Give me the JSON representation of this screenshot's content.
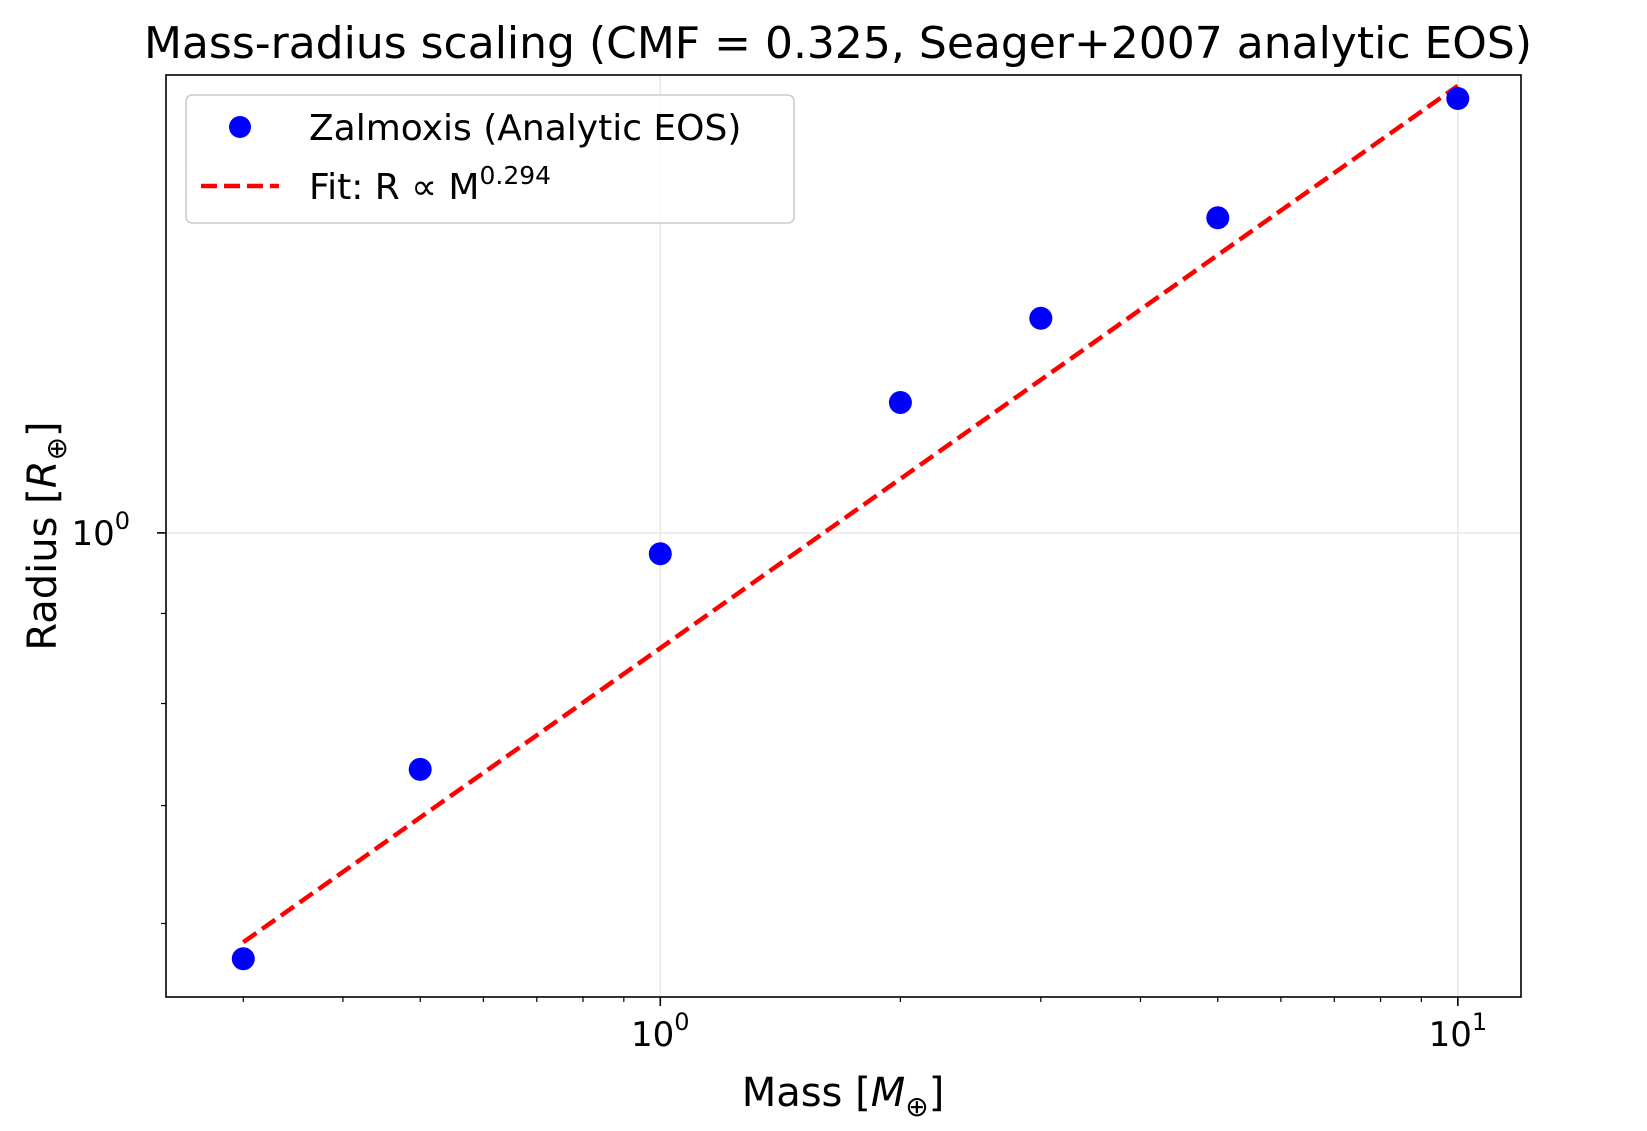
{
  "chart_data": {
    "type": "scatter",
    "title": "Mass-radius scaling (CMF = 0.325, Seager+2007 analytic EOS)",
    "xlabel": {
      "text": "Mass [",
      "var": "M",
      "sub": "⊕",
      "close": "]"
    },
    "ylabel": {
      "text": "Radius [",
      "var": "R",
      "sub": "⊕",
      "close": "]"
    },
    "xscale": "log",
    "yscale": "log",
    "xlim": [
      0.24,
      12.0
    ],
    "ylim": [
      0.545,
      1.82
    ],
    "grid": true,
    "legend_position": "upper left",
    "x_ticks": [
      {
        "value": 1,
        "base": "10",
        "exp": "0"
      },
      {
        "value": 10,
        "base": "10",
        "exp": "1"
      }
    ],
    "y_ticks": [
      {
        "value": 1,
        "base": "10",
        "exp": "0"
      }
    ],
    "series": [
      {
        "name": "Zalmoxis (Analytic EOS)",
        "kind": "markers",
        "color": "#0000ff",
        "x": [
          0.3,
          0.5,
          1,
          2,
          3,
          5,
          10
        ],
        "y": [
          0.573,
          0.734,
          0.973,
          1.186,
          1.324,
          1.51,
          1.765
        ]
      },
      {
        "name": "Fit: R ∝ M",
        "name_exp": "0.294",
        "kind": "dashed-line",
        "color": "#ff0000",
        "exponent": 0.294,
        "coefficient": 0.975,
        "x": [
          0.3,
          10
        ],
        "y": [
          0.5855,
          1.7944
        ]
      }
    ]
  }
}
